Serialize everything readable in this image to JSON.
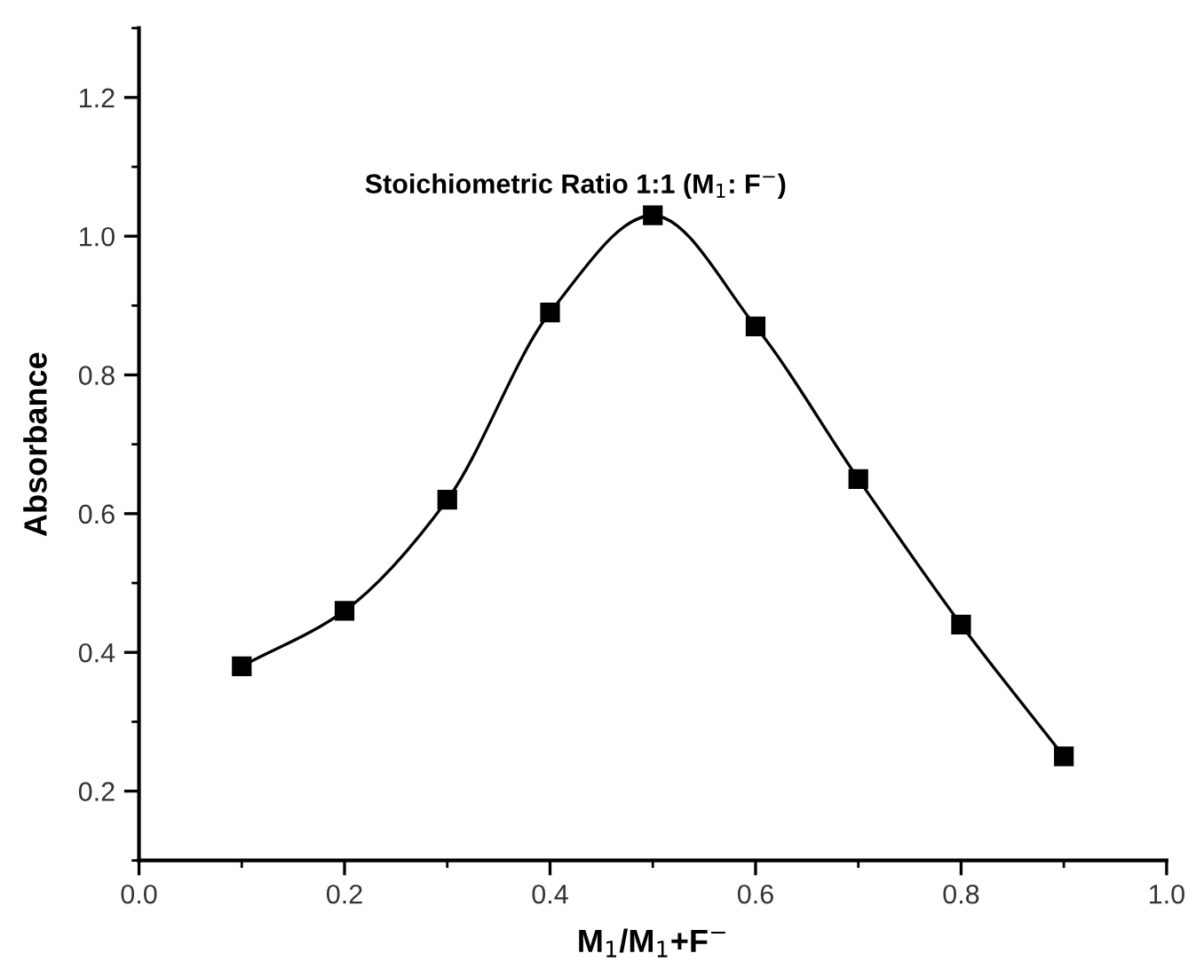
{
  "chart_data": {
    "type": "line",
    "xlabel": "M$_{1}$/M$_{1}$+F$^{−}$",
    "ylabel": "Absorbance",
    "annotations": [
      "Stoichiometric Ratio 1:1 (M$_{1}$: F$^{−}$)"
    ],
    "x": [
      0.1,
      0.2,
      0.3,
      0.4,
      0.5,
      0.6,
      0.7,
      0.8,
      0.9
    ],
    "series": [
      {
        "color": "#000000",
        "values": [
          0.38,
          0.46,
          0.62,
          0.89,
          1.03,
          0.87,
          0.65,
          0.44,
          0.25
        ]
      }
    ],
    "marker": "square",
    "line_style": "solid",
    "grid": false,
    "legend": false,
    "xlim": [
      0.0,
      1.0
    ],
    "xticks": [
      {
        "value": 0,
        "label": "0.0"
      },
      0.2,
      0.4,
      0.6,
      0.8,
      {
        "value": 1,
        "label": "1.0"
      }
    ],
    "ylim": [
      0.1,
      1.3
    ],
    "yticks": [
      0.2,
      0.4,
      0.6,
      0.8,
      {
        "value": 1,
        "label": "1.0"
      },
      1.2
    ]
  }
}
